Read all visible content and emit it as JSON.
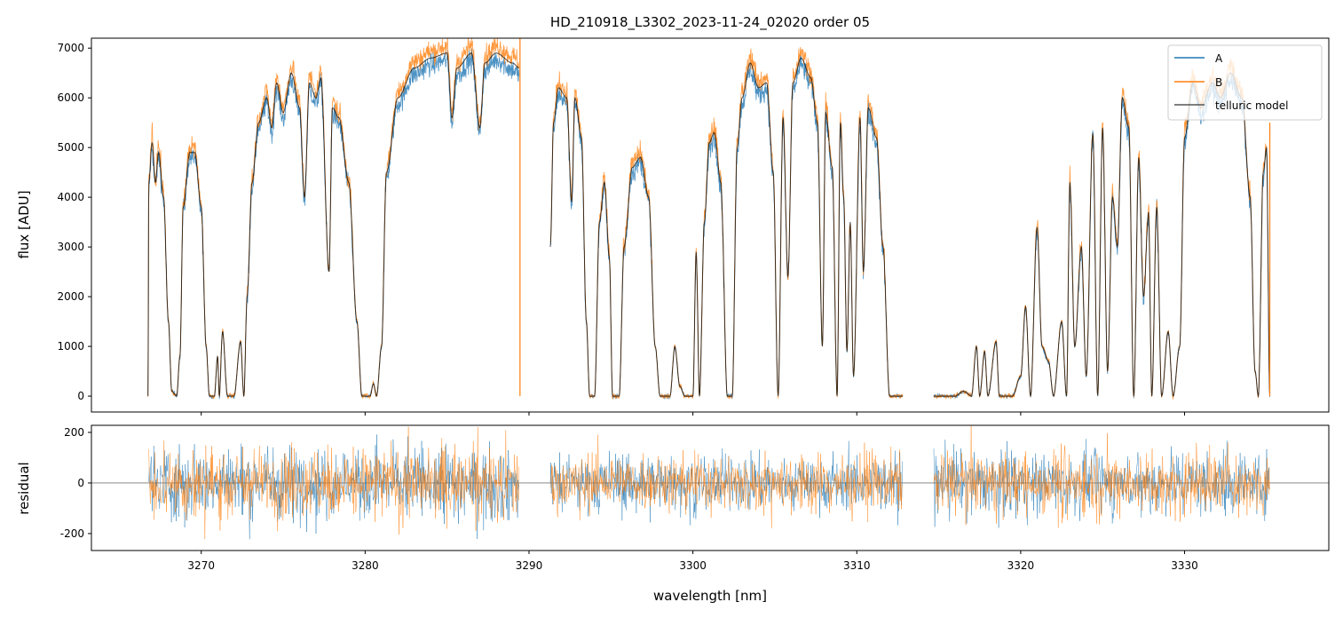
{
  "chart_data": [
    {
      "type": "line",
      "title": "HD_210918_L3302_2023-11-24_02020  order 05",
      "xlabel": "",
      "ylabel": "flux [ADU]",
      "xlim": [
        3263.3,
        3338.8
      ],
      "ylim": [
        -320,
        7200
      ],
      "yticks": [
        0,
        1000,
        2000,
        3000,
        4000,
        5000,
        6000,
        7000
      ],
      "xticks": [
        3270,
        3280,
        3290,
        3300,
        3310,
        3320,
        3330
      ],
      "legend": {
        "placement": "top-right",
        "entries": [
          "A",
          "B",
          "telluric model"
        ]
      },
      "colors": {
        "A": "#1f77b4",
        "B": "#ff7f0e",
        "model": "#000000"
      },
      "series_scale": {
        "A": 0.98,
        "B": 1.02
      },
      "b_spikes": [
        [
          3289.45,
          7200
        ],
        [
          3335.2,
          5500
        ]
      ],
      "telluric_model_segments": [
        [
          [
            3266.75,
            0
          ],
          [
            3266.8,
            4300
          ],
          [
            3267.0,
            5100
          ],
          [
            3267.2,
            4300
          ],
          [
            3267.4,
            4900
          ],
          [
            3267.7,
            4000
          ],
          [
            3268.0,
            1500
          ],
          [
            3268.2,
            100
          ],
          [
            3268.5,
            0
          ],
          [
            3268.7,
            800
          ],
          [
            3268.9,
            3800
          ],
          [
            3269.3,
            4900
          ],
          [
            3269.6,
            4900
          ],
          [
            3270.0,
            3800
          ],
          [
            3270.3,
            1000
          ],
          [
            3270.5,
            0
          ],
          [
            3270.8,
            0
          ],
          [
            3271.0,
            800
          ],
          [
            3271.1,
            0
          ],
          [
            3271.3,
            1300
          ],
          [
            3271.6,
            0
          ],
          [
            3272.0,
            0
          ],
          [
            3272.4,
            1100
          ],
          [
            3272.6,
            0
          ],
          [
            3272.8,
            2000
          ],
          [
            3273.1,
            4300
          ],
          [
            3273.5,
            5500
          ],
          [
            3274.0,
            6000
          ],
          [
            3274.3,
            5400
          ],
          [
            3274.6,
            6300
          ],
          [
            3275.0,
            5700
          ],
          [
            3275.5,
            6500
          ],
          [
            3276.0,
            5800
          ],
          [
            3276.3,
            4000
          ],
          [
            3276.6,
            6300
          ],
          [
            3277.0,
            6000
          ],
          [
            3277.3,
            6400
          ],
          [
            3277.8,
            2500
          ],
          [
            3278.0,
            5800
          ],
          [
            3278.4,
            5600
          ],
          [
            3279.0,
            4300
          ],
          [
            3279.5,
            1500
          ],
          [
            3279.8,
            0
          ],
          [
            3280.3,
            0
          ],
          [
            3280.5,
            250
          ],
          [
            3280.7,
            0
          ],
          [
            3281.0,
            1000
          ],
          [
            3281.3,
            4500
          ],
          [
            3282.0,
            6000
          ],
          [
            3283.0,
            6600
          ],
          [
            3284.0,
            6800
          ],
          [
            3285.0,
            6900
          ],
          [
            3285.3,
            5600
          ],
          [
            3285.6,
            6600
          ],
          [
            3286.5,
            6900
          ],
          [
            3287.0,
            5400
          ],
          [
            3287.3,
            6700
          ],
          [
            3288.0,
            6900
          ],
          [
            3289.0,
            6700
          ],
          [
            3289.4,
            6600
          ]
        ],
        [
          [
            3291.3,
            3000
          ],
          [
            3291.5,
            5500
          ],
          [
            3291.8,
            6200
          ],
          [
            3292.3,
            6000
          ],
          [
            3292.6,
            3900
          ],
          [
            3292.8,
            6000
          ],
          [
            3293.2,
            5200
          ],
          [
            3293.5,
            1500
          ],
          [
            3293.7,
            0
          ],
          [
            3294.0,
            0
          ],
          [
            3294.3,
            3500
          ],
          [
            3294.6,
            4300
          ],
          [
            3294.9,
            2800
          ],
          [
            3295.1,
            0
          ],
          [
            3295.5,
            0
          ],
          [
            3295.8,
            3000
          ],
          [
            3296.3,
            4600
          ],
          [
            3296.8,
            4800
          ],
          [
            3297.3,
            4000
          ],
          [
            3297.7,
            1000
          ],
          [
            3298.0,
            0
          ],
          [
            3298.6,
            0
          ],
          [
            3298.9,
            1000
          ],
          [
            3299.2,
            200
          ],
          [
            3299.5,
            0
          ],
          [
            3300.0,
            0
          ],
          [
            3300.2,
            2900
          ],
          [
            3300.4,
            0
          ],
          [
            3300.7,
            3500
          ],
          [
            3301.0,
            5100
          ],
          [
            3301.3,
            5300
          ],
          [
            3301.7,
            4300
          ],
          [
            3302.1,
            0
          ],
          [
            3302.4,
            0
          ],
          [
            3302.7,
            5000
          ],
          [
            3303.0,
            6000
          ],
          [
            3303.5,
            6700
          ],
          [
            3304.0,
            6200
          ],
          [
            3304.5,
            6300
          ],
          [
            3304.9,
            4500
          ],
          [
            3305.2,
            0
          ],
          [
            3305.5,
            5600
          ],
          [
            3305.8,
            2400
          ],
          [
            3306.1,
            6300
          ],
          [
            3306.6,
            6800
          ],
          [
            3307.2,
            6400
          ],
          [
            3307.6,
            5500
          ],
          [
            3307.9,
            1000
          ],
          [
            3308.1,
            5700
          ],
          [
            3308.5,
            4600
          ],
          [
            3308.8,
            0
          ],
          [
            3309.0,
            5500
          ],
          [
            3309.2,
            4000
          ],
          [
            3309.4,
            900
          ],
          [
            3309.6,
            3500
          ],
          [
            3309.8,
            400
          ],
          [
            3310.2,
            5600
          ],
          [
            3310.4,
            2500
          ],
          [
            3310.7,
            5800
          ],
          [
            3311.2,
            5200
          ],
          [
            3311.6,
            3000
          ],
          [
            3312.0,
            0
          ],
          [
            3312.8,
            0
          ]
        ],
        [
          [
            3314.7,
            0
          ],
          [
            3316.0,
            0
          ],
          [
            3316.5,
            100
          ],
          [
            3317.0,
            0
          ],
          [
            3317.3,
            1000
          ],
          [
            3317.5,
            0
          ],
          [
            3317.8,
            900
          ],
          [
            3318.0,
            0
          ],
          [
            3318.5,
            1100
          ],
          [
            3318.7,
            0
          ],
          [
            3319.5,
            0
          ],
          [
            3320.0,
            400
          ],
          [
            3320.3,
            1800
          ],
          [
            3320.6,
            0
          ],
          [
            3321.0,
            3400
          ],
          [
            3321.3,
            1000
          ],
          [
            3321.7,
            700
          ],
          [
            3322.0,
            0
          ],
          [
            3322.5,
            1500
          ],
          [
            3322.8,
            0
          ],
          [
            3323.0,
            4300
          ],
          [
            3323.3,
            1000
          ],
          [
            3323.7,
            3000
          ],
          [
            3324.0,
            400
          ],
          [
            3324.4,
            5300
          ],
          [
            3324.7,
            0
          ],
          [
            3325.0,
            5400
          ],
          [
            3325.3,
            500
          ],
          [
            3325.6,
            4000
          ],
          [
            3325.9,
            3000
          ],
          [
            3326.2,
            6000
          ],
          [
            3326.6,
            5400
          ],
          [
            3326.9,
            0
          ],
          [
            3327.2,
            4800
          ],
          [
            3327.5,
            2000
          ],
          [
            3327.8,
            3700
          ],
          [
            3328.0,
            0
          ],
          [
            3328.3,
            3800
          ],
          [
            3328.6,
            0
          ],
          [
            3329.0,
            1300
          ],
          [
            3329.3,
            0
          ],
          [
            3329.7,
            1000
          ],
          [
            3330.0,
            5200
          ],
          [
            3330.5,
            6300
          ],
          [
            3331.0,
            5800
          ],
          [
            3331.7,
            6300
          ],
          [
            3332.2,
            6000
          ],
          [
            3332.8,
            6500
          ],
          [
            3333.5,
            6000
          ],
          [
            3334.0,
            4000
          ],
          [
            3334.3,
            500
          ],
          [
            3334.5,
            0
          ],
          [
            3334.8,
            4500
          ],
          [
            3335.0,
            5000
          ],
          [
            3335.2,
            0
          ]
        ]
      ]
    },
    {
      "type": "line",
      "title": "",
      "xlabel": "wavelength [nm]",
      "ylabel": "residual",
      "xlim": [
        3263.3,
        3338.8
      ],
      "ylim": [
        -267,
        228
      ],
      "yticks": [
        -200,
        0,
        200
      ],
      "xticks": [
        3270,
        3280,
        3290,
        3300,
        3310,
        3320,
        3330
      ],
      "reference_line": 0,
      "residual_segments": [
        {
          "range": [
            3266.8,
            3289.4
          ],
          "rms": 70
        },
        {
          "range": [
            3291.3,
            3312.8
          ],
          "rms": 55
        },
        {
          "range": [
            3314.7,
            3335.2
          ],
          "rms": 60
        }
      ]
    }
  ]
}
